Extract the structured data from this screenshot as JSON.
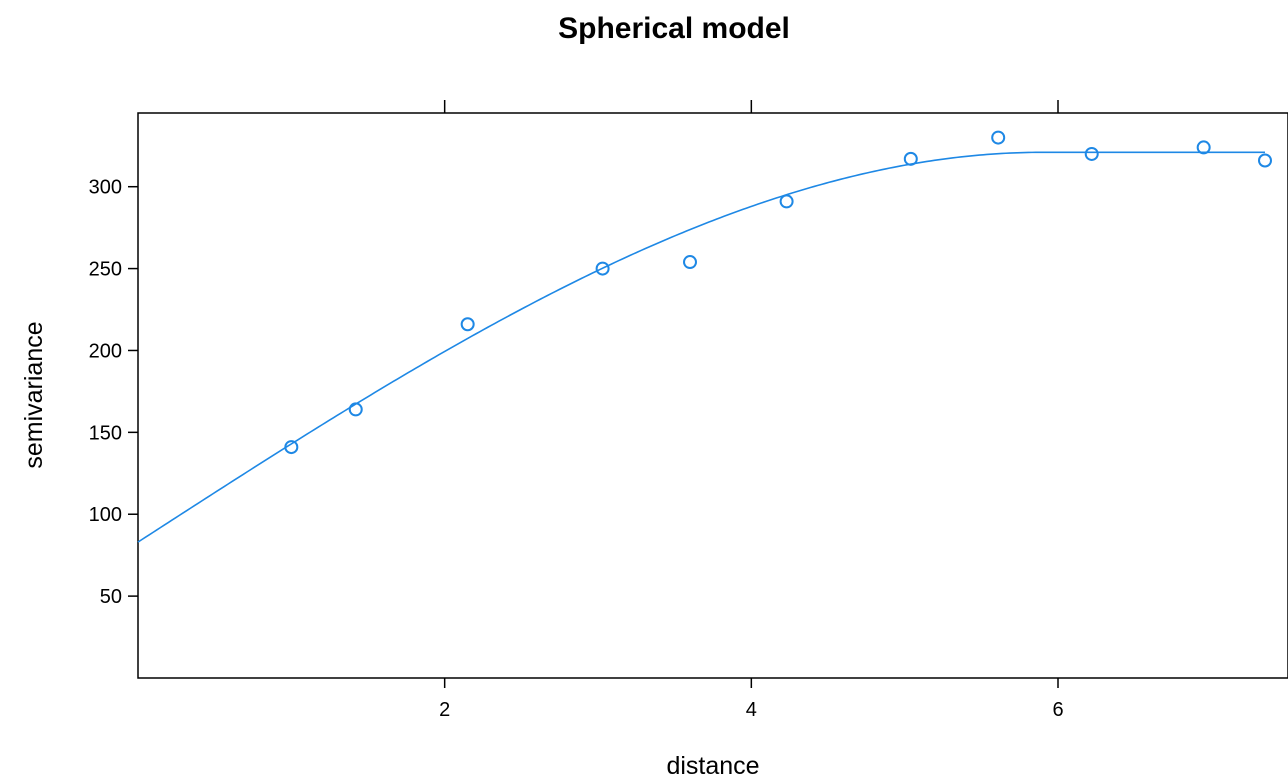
{
  "chart_data": {
    "type": "scatter",
    "title": "Spherical model",
    "xlabel": "distance",
    "ylabel": "semivariance",
    "xlim": [
      0.0,
      7.5
    ],
    "ylim": [
      0,
      345
    ],
    "x_ticks": [
      2,
      4,
      6
    ],
    "y_ticks": [
      50,
      100,
      150,
      200,
      250,
      300
    ],
    "top_ticks": [
      2,
      4,
      6
    ],
    "grid": false,
    "legend": "none",
    "series": [
      {
        "type": "scatter",
        "marker": "open-circle",
        "color": "#1e88e5",
        "points": [
          {
            "x": 1.0,
            "y": 141
          },
          {
            "x": 1.42,
            "y": 164
          },
          {
            "x": 2.15,
            "y": 216
          },
          {
            "x": 3.03,
            "y": 250
          },
          {
            "x": 3.6,
            "y": 254
          },
          {
            "x": 4.23,
            "y": 291
          },
          {
            "x": 5.04,
            "y": 317
          },
          {
            "x": 5.61,
            "y": 330
          },
          {
            "x": 6.22,
            "y": 320
          },
          {
            "x": 6.95,
            "y": 324
          },
          {
            "x": 7.35,
            "y": 316
          }
        ]
      },
      {
        "type": "line",
        "model": "spherical",
        "color": "#1e88e5",
        "nugget": 83,
        "sill": 321,
        "range": 5.9,
        "x_start": 0.0,
        "x_end": 7.35
      }
    ]
  }
}
